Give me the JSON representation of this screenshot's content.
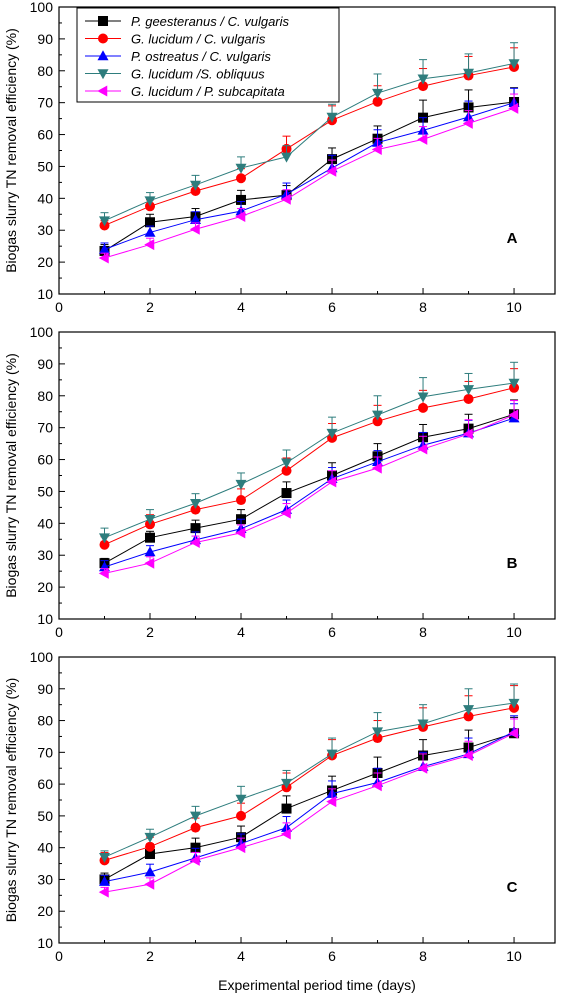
{
  "figure": {
    "xlabel": "Experimental period time (days)"
  },
  "legend": [
    {
      "name": "P. geesteranus / C. vulgaris",
      "color": "#000000",
      "marker": "square"
    },
    {
      "name": "G. lucidum / C. vulgaris",
      "color": "#ff0000",
      "marker": "circle"
    },
    {
      "name": "P. ostreatus / C. vulgaris",
      "color": "#0000ff",
      "marker": "triangle-up"
    },
    {
      "name": "G. lucidum /S. obliquus",
      "color": "#2e7d7d",
      "marker": "triangle-down"
    },
    {
      "name": "G. lucidum / P. subcapitata",
      "color": "#ff00ff",
      "marker": "triangle-left"
    }
  ],
  "chart_data": [
    {
      "type": "line",
      "panel": "A",
      "ylabel": "Biogas slurry TN removal efficiency (%)",
      "xlim": [
        0,
        10.9
      ],
      "ylim": [
        10,
        100
      ],
      "xticks": [
        0,
        2,
        4,
        6,
        8,
        10
      ],
      "yticks": [
        10,
        20,
        30,
        40,
        50,
        60,
        70,
        80,
        90,
        100
      ],
      "x": [
        1,
        2,
        3,
        4,
        5,
        6,
        7,
        8,
        9,
        10
      ],
      "series": [
        {
          "name": "P. geesteranus / C. vulgaris",
          "values": [
            23.5,
            32.5,
            34.3,
            39.5,
            41,
            52.3,
            58.7,
            65.3,
            68.5,
            70.2
          ],
          "errors": [
            2,
            2.5,
            2.5,
            3,
            3,
            3.5,
            4,
            5.5,
            5.5,
            4.5
          ]
        },
        {
          "name": "G. lucidum / C. vulgaris",
          "values": [
            31.5,
            37.5,
            42.3,
            46.3,
            55.5,
            64.5,
            70.3,
            75.2,
            78.5,
            81.2
          ],
          "errors": [
            1.5,
            2,
            2,
            3,
            4,
            4.5,
            5,
            5.5,
            6,
            6
          ]
        },
        {
          "name": "P. ostreatus / C. vulgaris",
          "values": [
            24,
            29.3,
            33.3,
            36,
            41.3,
            49.5,
            57.5,
            61.3,
            65.5,
            70
          ],
          "errors": [
            2,
            2,
            2.5,
            3,
            3.5,
            4,
            4,
            4,
            5,
            4.5
          ]
        },
        {
          "name": "G. lucidum /S. obliquus",
          "values": [
            33,
            39.3,
            44.2,
            49.5,
            53,
            65.5,
            73,
            77.5,
            79.3,
            82.3
          ],
          "errors": [
            2.5,
            2.5,
            3,
            3.5,
            3.5,
            4,
            6,
            6,
            6,
            6.5
          ]
        },
        {
          "name": "G. lucidum / P. subcapitata",
          "values": [
            21.3,
            25.5,
            30.3,
            34.3,
            39.7,
            48.5,
            55.3,
            58.5,
            63.5,
            68.2
          ],
          "errors": [
            1.5,
            2,
            2,
            2.5,
            3,
            3.5,
            3.5,
            4,
            4,
            4.5
          ]
        }
      ]
    },
    {
      "type": "line",
      "panel": "B",
      "ylabel": "Biogas slurry TN removal efficiency (%)",
      "xlim": [
        0,
        10.9
      ],
      "ylim": [
        10,
        100
      ],
      "xticks": [
        0,
        2,
        4,
        6,
        8,
        10
      ],
      "yticks": [
        10,
        20,
        30,
        40,
        50,
        60,
        70,
        80,
        90,
        100
      ],
      "x": [
        1,
        2,
        3,
        4,
        5,
        6,
        7,
        8,
        9,
        10
      ],
      "series": [
        {
          "name": "P. geesteranus / C. vulgaris",
          "values": [
            27.5,
            35.5,
            38.5,
            41.3,
            49.5,
            55,
            61,
            67,
            69.7,
            74.2
          ],
          "errors": [
            1.5,
            2,
            2.5,
            3,
            3.5,
            4,
            4,
            4,
            4.5,
            4.5
          ]
        },
        {
          "name": "G. lucidum / C. vulgaris",
          "values": [
            33.3,
            39.7,
            44.3,
            47.3,
            56.5,
            66.8,
            72,
            76.2,
            79,
            82.5
          ],
          "errors": [
            2.5,
            3,
            3,
            3.5,
            4,
            4.5,
            5,
            5.5,
            5.5,
            6
          ]
        },
        {
          "name": "P. ostreatus / C. vulgaris",
          "values": [
            26.3,
            31,
            34.8,
            38.3,
            44.3,
            54,
            59.3,
            64.5,
            68.3,
            73
          ],
          "errors": [
            2,
            2,
            2.5,
            3,
            3,
            3.5,
            3.5,
            4,
            4,
            4.5
          ]
        },
        {
          "name": "G. lucidum /S. obliquus",
          "values": [
            35.5,
            41.3,
            46.3,
            52.3,
            59,
            68.3,
            74,
            79.7,
            82,
            84
          ],
          "errors": [
            3,
            3,
            3,
            3.5,
            4,
            5,
            6,
            6,
            5,
            6.5
          ]
        },
        {
          "name": "G. lucidum / P. subcapitata",
          "values": [
            24.3,
            27.5,
            34,
            37,
            43.2,
            53,
            57.3,
            63.3,
            68,
            74
          ],
          "errors": [
            1.5,
            2,
            2,
            2.5,
            3,
            3.5,
            3.5,
            4,
            4.5,
            4.5
          ]
        }
      ]
    },
    {
      "type": "line",
      "panel": "C",
      "ylabel": "Biogas slurry TN removal efficiency (%)",
      "xlim": [
        0,
        10.9
      ],
      "ylim": [
        10,
        100
      ],
      "xticks": [
        0,
        2,
        4,
        6,
        8,
        10
      ],
      "yticks": [
        10,
        20,
        30,
        40,
        50,
        60,
        70,
        80,
        90,
        100
      ],
      "x": [
        1,
        2,
        3,
        4,
        5,
        6,
        7,
        8,
        9,
        10
      ],
      "series": [
        {
          "name": "P. geesteranus / C. vulgaris",
          "values": [
            30,
            38,
            40,
            43.3,
            52.3,
            58,
            63.5,
            69,
            71.5,
            76
          ],
          "errors": [
            2,
            2.5,
            3,
            3.5,
            4,
            4.5,
            5,
            5,
            5.5,
            5
          ]
        },
        {
          "name": "G. lucidum / C. vulgaris",
          "values": [
            36,
            40.3,
            46.3,
            50,
            59,
            69,
            74.5,
            78,
            81.3,
            84
          ],
          "errors": [
            2.5,
            3,
            3,
            4,
            4.5,
            5,
            5.5,
            6,
            6.5,
            7
          ]
        },
        {
          "name": "P. ostreatus / C. vulgaris",
          "values": [
            29.3,
            32.3,
            36.8,
            41.3,
            46.3,
            57,
            60.5,
            65.5,
            69.5,
            76.5
          ],
          "errors": [
            2,
            2.5,
            3,
            3,
            3.5,
            4,
            4.5,
            4.5,
            5,
            5
          ]
        },
        {
          "name": "G. lucidum /S. obliquus",
          "values": [
            37,
            43.3,
            50,
            55.3,
            60.3,
            69.5,
            76.5,
            79,
            83.5,
            85.5
          ],
          "errors": [
            2,
            2.5,
            3,
            4,
            4,
            5,
            6,
            6,
            6.5,
            6
          ]
        },
        {
          "name": "G. lucidum / P. subcapitata",
          "values": [
            26,
            28.5,
            36,
            40,
            44.3,
            54.5,
            59.5,
            65,
            69,
            76
          ],
          "errors": [
            1.5,
            2,
            2.5,
            3,
            3.5,
            4,
            4,
            4.5,
            4.5,
            4.5
          ]
        }
      ]
    }
  ]
}
